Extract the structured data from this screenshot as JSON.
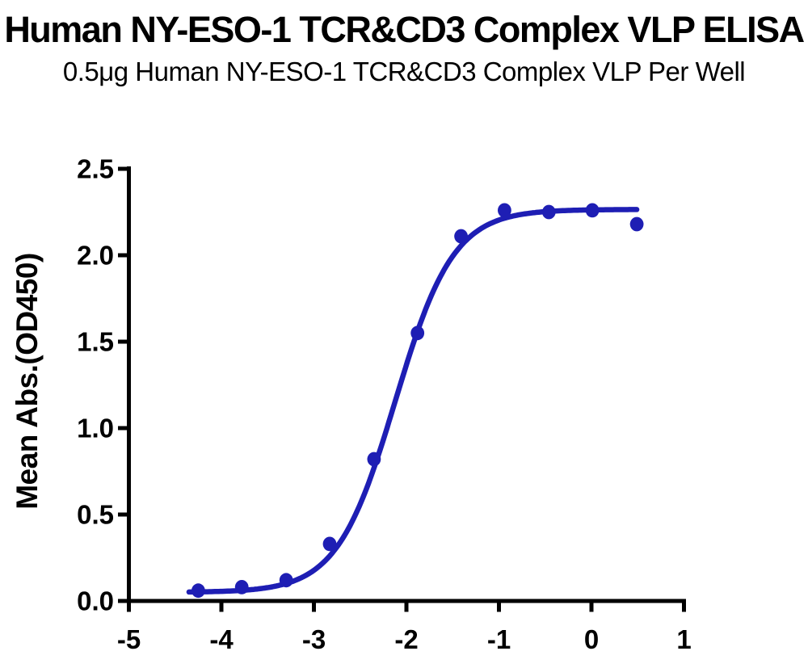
{
  "chart_data": {
    "type": "scatter",
    "title": "Human NY-ESO-1 TCR&CD3 Complex VLP ELISA",
    "subtitle": "0.5μg Human NY-ESO-1 TCR&CD3 Complex VLP Per Well",
    "xlabel": "",
    "ylabel": "Mean Abs.(OD450)",
    "xlim": [
      -5,
      1
    ],
    "ylim": [
      0,
      2.5
    ],
    "xticks": [
      -5,
      -4,
      -3,
      -2,
      -1,
      0,
      1
    ],
    "xtick_labels": [
      "-5",
      "-4",
      "-3",
      "-2",
      "-1",
      "0",
      "1"
    ],
    "yticks": [
      0,
      0.5,
      1.0,
      1.5,
      2.0,
      2.5
    ],
    "ytick_labels": [
      "0.0",
      "0.5",
      "1.0",
      "1.5",
      "2.0",
      "2.5"
    ],
    "grid": false,
    "legend": null,
    "points": {
      "x": [
        -4.25,
        -3.78,
        -3.3,
        -2.83,
        -2.35,
        -1.88,
        -1.41,
        -0.94,
        -0.46,
        0.01,
        0.49
      ],
      "y": [
        0.06,
        0.08,
        0.12,
        0.33,
        0.82,
        1.55,
        2.11,
        2.26,
        2.25,
        2.26,
        2.18
      ]
    },
    "fit": {
      "model": "4PL",
      "bottom": 0.05,
      "top": 2.265,
      "logEC50": -2.12,
      "hill": 1.38,
      "x_start": -4.35,
      "x_end": 0.49
    },
    "colors": {
      "series": "#1e1eb4",
      "axis": "#000000"
    }
  }
}
